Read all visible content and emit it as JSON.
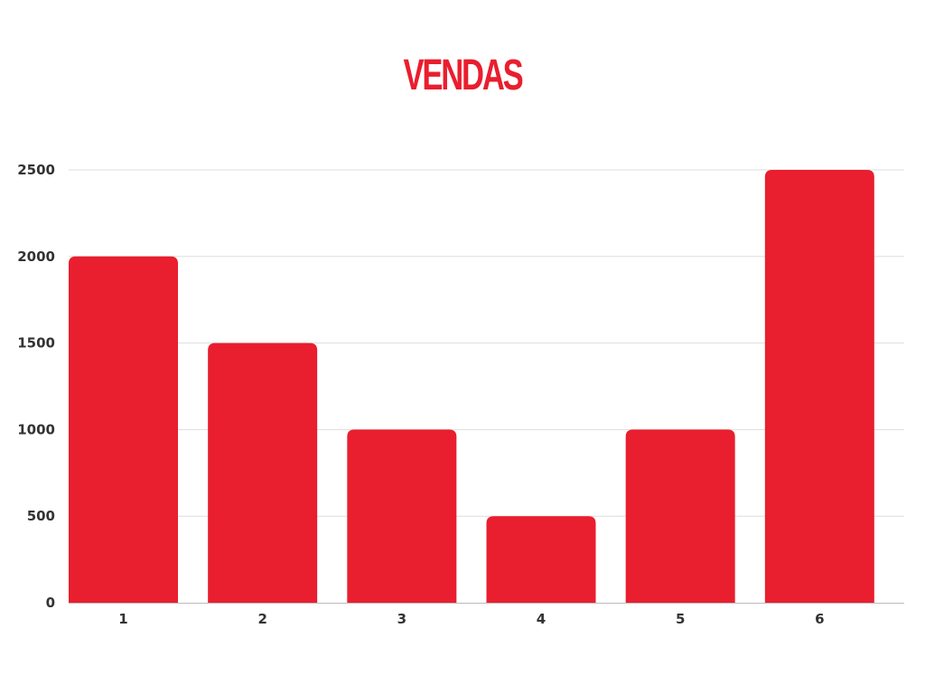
{
  "chart_data": {
    "type": "bar",
    "title": "VENDAS",
    "xlabel": "",
    "ylabel": "",
    "categories": [
      "1",
      "2",
      "3",
      "4",
      "5",
      "6"
    ],
    "values": [
      2000,
      1500,
      1000,
      500,
      1000,
      2500
    ],
    "ylim": [
      0,
      2500
    ],
    "yticks": [
      "0",
      "500",
      "1000",
      "1500",
      "2000",
      "2500"
    ],
    "grid": true,
    "legend": "none",
    "bar_color": "#e91e2e",
    "gridline_color": "#dddddd",
    "axis_color": "#bbbbbb",
    "tick_color": "#333333"
  }
}
